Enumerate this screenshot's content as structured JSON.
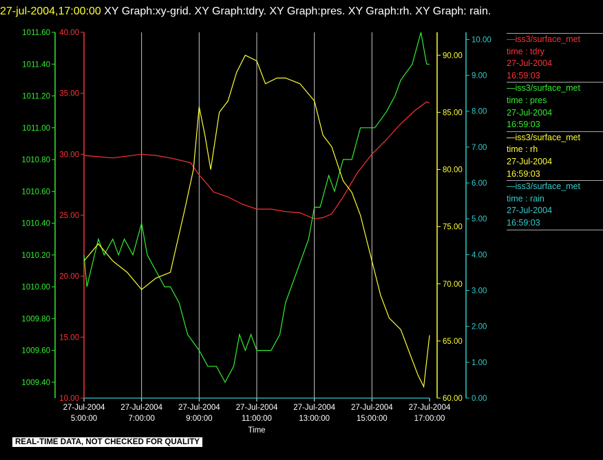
{
  "title": {
    "date": "27-jul-2004,17:00:00",
    "text": "XY Graph:xy-grid.  XY Graph:tdry.  XY Graph:pres.  XY Graph:rh.  XY Graph: rain."
  },
  "footer": "REAL-TIME DATA, NOT CHECKED FOR QUALITY",
  "legend": [
    {
      "line": "—iss3/surface_met",
      "var": "time : tdry",
      "date": "27-Jul-2004",
      "time": "16:59:03",
      "color": "#ff3333"
    },
    {
      "line": "—iss3/surface_met",
      "var": "time : pres",
      "date": "27-Jul-2004",
      "time": "16:59:03",
      "color": "#33ee33"
    },
    {
      "line": "—iss3/surface_met",
      "var": "time : rh",
      "date": "27-Jul-2004",
      "time": "16:59:03",
      "color": "#ffff33"
    },
    {
      "line": "—iss3/surface_met",
      "var": "time : rain",
      "date": "27-Jul-2004",
      "time": "16:59:03",
      "color": "#33cccc"
    }
  ],
  "chart_data": {
    "type": "line",
    "xlabel": "Time",
    "xlim": [
      "5:00:00",
      "17:00:00"
    ],
    "x_ticks": [
      {
        "date": "27-Jul-2004",
        "time": "5:00:00"
      },
      {
        "date": "27-Jul-2004",
        "time": "7:00:00"
      },
      {
        "date": "27-Jul-2004",
        "time": "9:00:00"
      },
      {
        "date": "27-Jul-2004",
        "time": "11:00:00"
      },
      {
        "date": "27-Jul-2004",
        "time": "13:00:00"
      },
      {
        "date": "27-Jul-2004",
        "time": "15:00:00"
      },
      {
        "date": "27-Jul-2004",
        "time": "17:00:00"
      }
    ],
    "grid": "vertical",
    "axes": {
      "pres": {
        "color": "#33ee33",
        "ylim": [
          1009.3,
          1011.6
        ],
        "ticks": [
          "1011.60",
          "1011.40",
          "1011.20",
          "1011.00",
          "1010.80",
          "1010.60",
          "1010.40",
          "1010.20",
          "1010.00",
          "1009.80",
          "1009.60",
          "1009.40"
        ]
      },
      "tdry": {
        "color": "#ff3333",
        "ylim": [
          10,
          40
        ],
        "ticks": [
          "40.00",
          "35.00",
          "30.00",
          "25.00",
          "20.00",
          "15.00",
          "10.00"
        ]
      },
      "rh": {
        "color": "#ffff33",
        "ylim": [
          60,
          92
        ],
        "ticks": [
          "90.00",
          "85.00",
          "80.00",
          "75.00",
          "70.00",
          "65.00",
          "60.00"
        ]
      },
      "rain": {
        "color": "#33cccc",
        "ylim": [
          0,
          10.2
        ],
        "ticks": [
          "10.00",
          "9.00",
          "8.00",
          "7.00",
          "6.00",
          "5.00",
          "4.00",
          "3.00",
          "2.00",
          "1.00",
          "0.00"
        ]
      }
    },
    "series": [
      {
        "name": "tdry",
        "axis": "tdry",
        "color": "#ff3333",
        "x": [
          5.0,
          6.0,
          7.0,
          7.5,
          8.0,
          8.7,
          9.0,
          9.3,
          9.5,
          10.0,
          10.5,
          11.0,
          11.5,
          12.0,
          12.5,
          13.0,
          13.3,
          13.6,
          14.0,
          14.5,
          15.0,
          15.5,
          16.0,
          16.5,
          16.9,
          17.0
        ],
        "y": [
          29.9,
          29.7,
          30.0,
          29.9,
          29.7,
          29.3,
          28.3,
          27.5,
          26.9,
          26.5,
          25.9,
          25.5,
          25.5,
          25.3,
          25.2,
          24.7,
          24.8,
          25.1,
          26.5,
          28.5,
          30.0,
          31.2,
          32.5,
          33.6,
          34.3,
          34.2
        ]
      },
      {
        "name": "pres",
        "axis": "pres",
        "color": "#33ee33",
        "x": [
          5.0,
          5.1,
          5.5,
          5.7,
          6.0,
          6.2,
          6.4,
          6.7,
          7.0,
          7.2,
          7.5,
          7.8,
          8.0,
          8.3,
          8.6,
          9.0,
          9.3,
          9.6,
          9.9,
          10.2,
          10.4,
          10.6,
          10.8,
          11.0,
          11.5,
          11.8,
          12.0,
          12.4,
          12.8,
          13.0,
          13.2,
          13.5,
          13.7,
          14.0,
          14.3,
          14.6,
          14.9,
          15.1,
          15.5,
          15.8,
          16.0,
          16.4,
          16.7,
          16.9,
          17.0
        ],
        "y": [
          1010.2,
          1010.0,
          1010.3,
          1010.2,
          1010.3,
          1010.2,
          1010.3,
          1010.2,
          1010.4,
          1010.2,
          1010.1,
          1010.0,
          1010.0,
          1009.9,
          1009.7,
          1009.6,
          1009.5,
          1009.5,
          1009.4,
          1009.5,
          1009.7,
          1009.6,
          1009.7,
          1009.6,
          1009.6,
          1009.7,
          1009.9,
          1010.1,
          1010.3,
          1010.5,
          1010.5,
          1010.7,
          1010.6,
          1010.8,
          1010.8,
          1011.0,
          1011.0,
          1011.0,
          1011.1,
          1011.2,
          1011.3,
          1011.4,
          1011.6,
          1011.4,
          1011.4
        ]
      },
      {
        "name": "rh",
        "axis": "rh",
        "color": "#ffff33",
        "x": [
          5.0,
          5.5,
          6.0,
          6.5,
          7.0,
          7.5,
          8.0,
          8.5,
          8.8,
          9.0,
          9.2,
          9.4,
          9.7,
          10.0,
          10.3,
          10.6,
          11.0,
          11.3,
          11.7,
          12.0,
          12.5,
          13.0,
          13.3,
          13.6,
          14.0,
          14.3,
          14.6,
          15.0,
          15.3,
          15.6,
          16.0,
          16.3,
          16.6,
          16.8,
          17.0
        ],
        "y": [
          72.0,
          73.5,
          72.0,
          71.0,
          69.5,
          70.5,
          71.0,
          76.5,
          80.0,
          85.5,
          83.0,
          80.0,
          85.0,
          86.0,
          88.5,
          90.0,
          89.5,
          87.5,
          88.0,
          88.0,
          87.5,
          86.0,
          83.0,
          82.0,
          79.0,
          78.0,
          76.0,
          72.0,
          69.0,
          67.0,
          66.0,
          64.0,
          62.0,
          61.0,
          65.5
        ]
      },
      {
        "name": "rain",
        "axis": "rain",
        "color": "#33cccc",
        "x": [
          5.0,
          17.0
        ],
        "y": [
          0.0,
          0.0
        ]
      }
    ]
  }
}
